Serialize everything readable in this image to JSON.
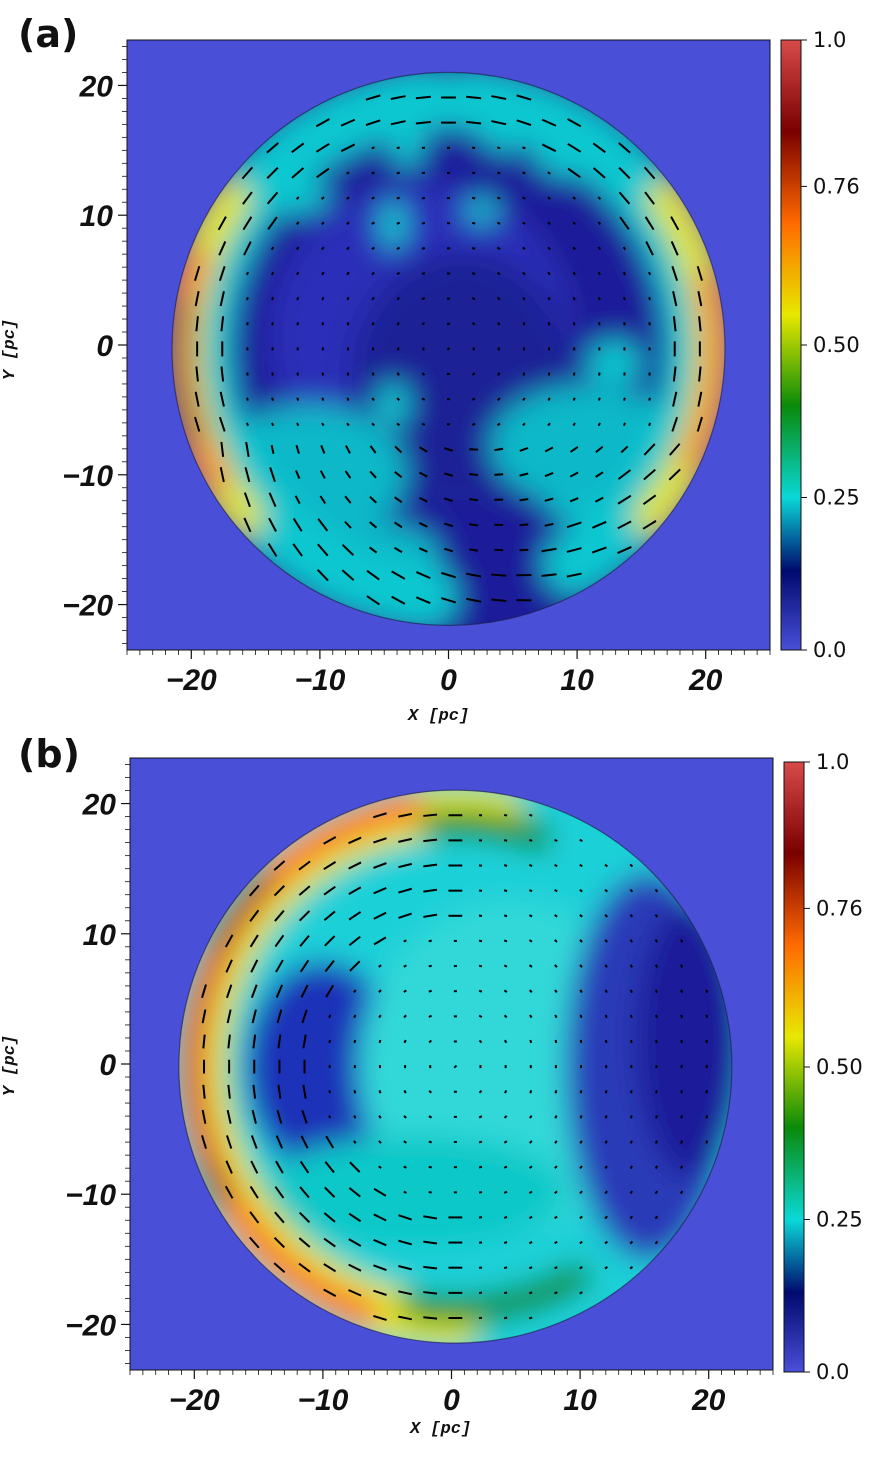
{
  "panels": {
    "a": {
      "label": "(a)",
      "xlabel": "X  [pc]",
      "ylabel": "Y  [pc]"
    },
    "b": {
      "label": "(b)",
      "xlabel": "X  [pc]",
      "ylabel": "Y  [pc]"
    }
  },
  "colors": {
    "background": "#4a4fd8",
    "colormap": [
      "#4a4fd8",
      "#000a6e",
      "#0ad8d8",
      "#0a8a0a",
      "#e8e800",
      "#ff6a00",
      "#7a0000",
      "#d84a4a"
    ]
  },
  "chart_data": [
    {
      "type": "heatmap",
      "title": "",
      "panel": "(a)",
      "xlabel": "X  [pc]",
      "ylabel": "Y  [pc]",
      "xlim": [
        -25,
        25
      ],
      "ylim": [
        -23.5,
        23.5
      ],
      "x_ticks": [
        -20,
        -10,
        0,
        10,
        20
      ],
      "y_ticks": [
        20,
        10,
        0,
        -10,
        -20
      ],
      "x_tick_labels": [
        "−20",
        "−10",
        "0",
        "10",
        "20"
      ],
      "y_tick_labels": [
        "20",
        "10",
        "0",
        "−10",
        "−20"
      ],
      "disk_radius_pc": 21.5,
      "colorbar": {
        "min": 0.0,
        "max": 1.0,
        "ticks": [
          1.0,
          0.76,
          0.5,
          0.25,
          0.0
        ],
        "tick_labels": [
          "1.0",
          "0.76",
          "0.50",
          "0.25",
          "0.0"
        ]
      },
      "vectors": "line segments overlay showing field orientation",
      "grid": false
    },
    {
      "type": "heatmap",
      "title": "",
      "panel": "(b)",
      "xlabel": "X  [pc]",
      "ylabel": "Y  [pc]",
      "xlim": [
        -25,
        25
      ],
      "ylim": [
        -23.5,
        23.5
      ],
      "x_ticks": [
        -20,
        -10,
        0,
        10,
        20
      ],
      "y_ticks": [
        20,
        10,
        0,
        -10,
        -20
      ],
      "x_tick_labels": [
        "−20",
        "−10",
        "0",
        "10",
        "20"
      ],
      "y_tick_labels": [
        "20",
        "10",
        "0",
        "−10",
        "−20"
      ],
      "disk_radius_pc": 21.5,
      "colorbar": {
        "min": 0.0,
        "max": 1.0,
        "ticks": [
          1.0,
          0.76,
          0.5,
          0.25,
          0.0
        ],
        "tick_labels": [
          "1.0",
          "0.76",
          "0.50",
          "0.25",
          "0.0"
        ]
      },
      "vectors": "line segments overlay showing field orientation",
      "grid": false
    }
  ]
}
